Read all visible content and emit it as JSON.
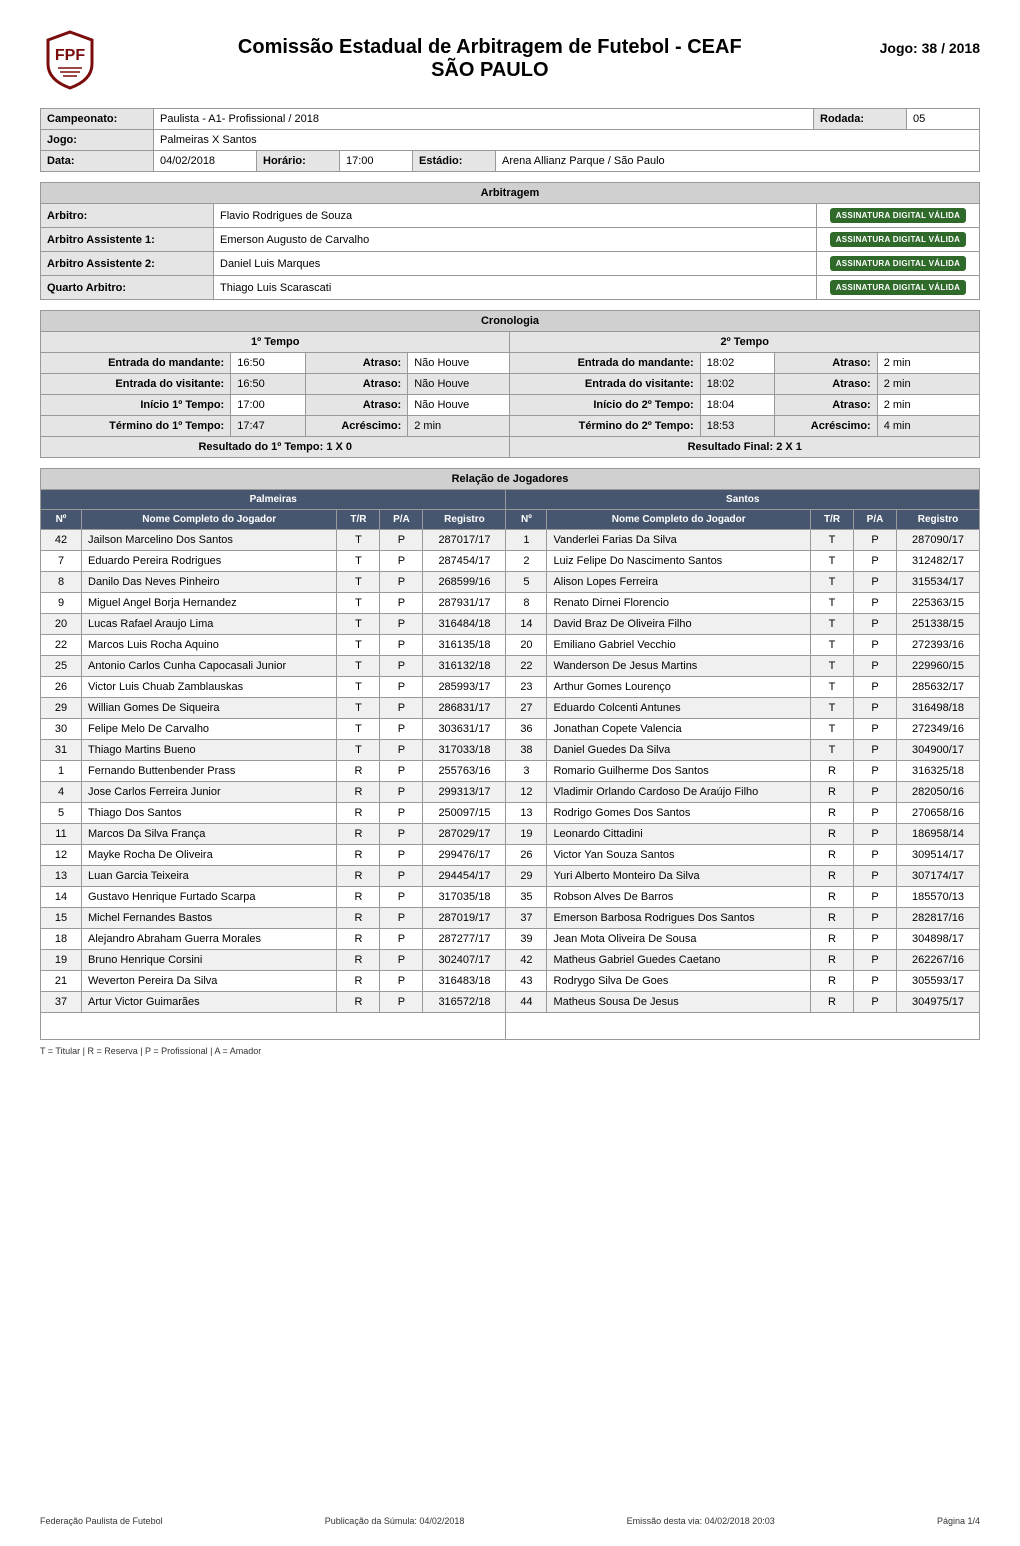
{
  "colors": {
    "page_bg": "#ffffff",
    "darkblue": "#46566f",
    "gray_header": "#d0d0d0",
    "gray_label": "#e5e5e5",
    "stripe": "#f0f0f0",
    "border": "#999999",
    "sig_badge": "#2f6a2a",
    "text": "#000000"
  },
  "logo_colors": {
    "border": "#7a0c0c",
    "letters": "#7a0c0c",
    "fill": "#ffffff"
  },
  "header": {
    "title_line1": "Comissão Estadual de Arbitragem de Futebol - CEAF",
    "title_line2": "SÃO PAULO",
    "jogo_label": "Jogo: 38 / 2018"
  },
  "camp": {
    "campeonato_label": "Campeonato:",
    "campeonato_value": "Paulista - A1- Profissional / 2018",
    "rodada_label": "Rodada:",
    "rodada_value": "05",
    "jogo_label": "Jogo:",
    "jogo_value": "Palmeiras X Santos",
    "data_label": "Data:",
    "data_value": "04/02/2018",
    "horario_label": "Horário:",
    "horario_value": "17:00",
    "estadio_label": "Estádio:",
    "estadio_value": "Arena Allianz Parque / São Paulo"
  },
  "arbitragem": {
    "header": "Arbitragem",
    "sig_text": "ASSINATURA DIGITAL VÁLIDA",
    "rows": [
      {
        "label": "Arbitro:",
        "value": "Flavio Rodrigues de Souza"
      },
      {
        "label": "Arbitro Assistente 1:",
        "value": "Emerson Augusto de Carvalho"
      },
      {
        "label": "Arbitro Assistente 2:",
        "value": "Daniel Luis Marques"
      },
      {
        "label": "Quarto Arbitro:",
        "value": "Thiago Luis Scarascati"
      }
    ]
  },
  "cronologia": {
    "header": "Cronologia",
    "tempo1": "1º Tempo",
    "tempo2": "2º Tempo",
    "labels": {
      "entrada_mand": "Entrada do mandante:",
      "entrada_vis": "Entrada do visitante:",
      "inicio": "Início 1º Tempo:",
      "inicio2": "Início do 2º Tempo:",
      "termino": "Término do 1º Tempo:",
      "termino2": "Término do 2º Tempo:",
      "atraso": "Atraso:",
      "acrescimo": "Acréscimo:",
      "resultado1": "Resultado do 1º Tempo: 1 X 0",
      "resultado_final": "Resultado Final: 2 X 1"
    },
    "t1": {
      "entrada_mand": "16:50",
      "atraso_mand": "Não Houve",
      "entrada_vis": "16:50",
      "atraso_vis": "Não Houve",
      "inicio": "17:00",
      "atraso_inicio": "Não Houve",
      "termino": "17:47",
      "acrescimo": "2 min"
    },
    "t2": {
      "entrada_mand": "18:02",
      "atraso_mand": "2 min",
      "entrada_vis": "18:02",
      "atraso_vis": "2 min",
      "inicio": "18:04",
      "atraso_inicio": "2 min",
      "termino": "18:53",
      "acrescimo": "4 min"
    }
  },
  "jogadores": {
    "header": "Relação de Jogadores",
    "team_left": "Palmeiras",
    "team_right": "Santos",
    "col_n": "Nº",
    "col_nome": "Nome Completo do Jogador",
    "col_tr": "T/R",
    "col_pa": "P/A",
    "col_reg": "Registro",
    "left": [
      {
        "n": "42",
        "nome": "Jailson Marcelino Dos Santos",
        "tr": "T",
        "pa": "P",
        "reg": "287017/17",
        "stripe": true
      },
      {
        "n": "7",
        "nome": "Eduardo Pereira Rodrigues",
        "tr": "T",
        "pa": "P",
        "reg": "287454/17",
        "stripe": false
      },
      {
        "n": "8",
        "nome": "Danilo Das Neves Pinheiro",
        "tr": "T",
        "pa": "P",
        "reg": "268599/16",
        "stripe": true
      },
      {
        "n": "9",
        "nome": "Miguel Angel Borja Hernandez",
        "tr": "T",
        "pa": "P",
        "reg": "287931/17",
        "stripe": false
      },
      {
        "n": "20",
        "nome": "Lucas Rafael Araujo Lima",
        "tr": "T",
        "pa": "P",
        "reg": "316484/18",
        "stripe": true
      },
      {
        "n": "22",
        "nome": "Marcos Luis Rocha Aquino",
        "tr": "T",
        "pa": "P",
        "reg": "316135/18",
        "stripe": false
      },
      {
        "n": "25",
        "nome": "Antonio Carlos Cunha Capocasali Junior",
        "tr": "T",
        "pa": "P",
        "reg": "316132/18",
        "stripe": true
      },
      {
        "n": "26",
        "nome": "Victor Luis Chuab Zamblauskas",
        "tr": "T",
        "pa": "P",
        "reg": "285993/17",
        "stripe": false
      },
      {
        "n": "29",
        "nome": "Willian Gomes De Siqueira",
        "tr": "T",
        "pa": "P",
        "reg": "286831/17",
        "stripe": true
      },
      {
        "n": "30",
        "nome": "Felipe Melo De Carvalho",
        "tr": "T",
        "pa": "P",
        "reg": "303631/17",
        "stripe": false
      },
      {
        "n": "31",
        "nome": "Thiago Martins Bueno",
        "tr": "T",
        "pa": "P",
        "reg": "317033/18",
        "stripe": true
      },
      {
        "n": "1",
        "nome": "Fernando Buttenbender Prass",
        "tr": "R",
        "pa": "P",
        "reg": "255763/16",
        "stripe": false
      },
      {
        "n": "4",
        "nome": "Jose Carlos Ferreira Junior",
        "tr": "R",
        "pa": "P",
        "reg": "299313/17",
        "stripe": true
      },
      {
        "n": "5",
        "nome": "Thiago Dos Santos",
        "tr": "R",
        "pa": "P",
        "reg": "250097/15",
        "stripe": false
      },
      {
        "n": "11",
        "nome": "Marcos Da Silva França",
        "tr": "R",
        "pa": "P",
        "reg": "287029/17",
        "stripe": true
      },
      {
        "n": "12",
        "nome": "Mayke Rocha De Oliveira",
        "tr": "R",
        "pa": "P",
        "reg": "299476/17",
        "stripe": false
      },
      {
        "n": "13",
        "nome": "Luan Garcia Teixeira",
        "tr": "R",
        "pa": "P",
        "reg": "294454/17",
        "stripe": true
      },
      {
        "n": "14",
        "nome": "Gustavo Henrique Furtado Scarpa",
        "tr": "R",
        "pa": "P",
        "reg": "317035/18",
        "stripe": false
      },
      {
        "n": "15",
        "nome": "Michel Fernandes Bastos",
        "tr": "R",
        "pa": "P",
        "reg": "287019/17",
        "stripe": true
      },
      {
        "n": "18",
        "nome": "Alejandro Abraham Guerra Morales",
        "tr": "R",
        "pa": "P",
        "reg": "287277/17",
        "stripe": false
      },
      {
        "n": "19",
        "nome": "Bruno Henrique Corsini",
        "tr": "R",
        "pa": "P",
        "reg": "302407/17",
        "stripe": true
      },
      {
        "n": "21",
        "nome": "Weverton Pereira Da Silva",
        "tr": "R",
        "pa": "P",
        "reg": "316483/18",
        "stripe": false
      },
      {
        "n": "37",
        "nome": "Artur Victor Guimarães",
        "tr": "R",
        "pa": "P",
        "reg": "316572/18",
        "stripe": true
      }
    ],
    "right": [
      {
        "n": "1",
        "nome": "Vanderlei Farias Da Silva",
        "tr": "T",
        "pa": "P",
        "reg": "287090/17",
        "stripe": true
      },
      {
        "n": "2",
        "nome": "Luiz Felipe Do Nascimento Santos",
        "tr": "T",
        "pa": "P",
        "reg": "312482/17",
        "stripe": false
      },
      {
        "n": "5",
        "nome": "Alison Lopes Ferreira",
        "tr": "T",
        "pa": "P",
        "reg": "315534/17",
        "stripe": true
      },
      {
        "n": "8",
        "nome": "Renato Dirnei Florencio",
        "tr": "T",
        "pa": "P",
        "reg": "225363/15",
        "stripe": false
      },
      {
        "n": "14",
        "nome": "David Braz De Oliveira Filho",
        "tr": "T",
        "pa": "P",
        "reg": "251338/15",
        "stripe": true
      },
      {
        "n": "20",
        "nome": "Emiliano Gabriel Vecchio",
        "tr": "T",
        "pa": "P",
        "reg": "272393/16",
        "stripe": false
      },
      {
        "n": "22",
        "nome": "Wanderson De Jesus Martins",
        "tr": "T",
        "pa": "P",
        "reg": "229960/15",
        "stripe": true
      },
      {
        "n": "23",
        "nome": "Arthur Gomes Lourenço",
        "tr": "T",
        "pa": "P",
        "reg": "285632/17",
        "stripe": false
      },
      {
        "n": "27",
        "nome": "Eduardo Colcenti Antunes",
        "tr": "T",
        "pa": "P",
        "reg": "316498/18",
        "stripe": true
      },
      {
        "n": "36",
        "nome": "Jonathan Copete Valencia",
        "tr": "T",
        "pa": "P",
        "reg": "272349/16",
        "stripe": false
      },
      {
        "n": "38",
        "nome": "Daniel Guedes Da Silva",
        "tr": "T",
        "pa": "P",
        "reg": "304900/17",
        "stripe": true
      },
      {
        "n": "3",
        "nome": "Romario Guilherme Dos Santos",
        "tr": "R",
        "pa": "P",
        "reg": "316325/18",
        "stripe": false
      },
      {
        "n": "12",
        "nome": "Vladimir Orlando Cardoso De Araújo Filho",
        "tr": "R",
        "pa": "P",
        "reg": "282050/16",
        "stripe": true
      },
      {
        "n": "13",
        "nome": "Rodrigo Gomes Dos Santos",
        "tr": "R",
        "pa": "P",
        "reg": "270658/16",
        "stripe": false
      },
      {
        "n": "19",
        "nome": "Leonardo Cittadini",
        "tr": "R",
        "pa": "P",
        "reg": "186958/14",
        "stripe": true
      },
      {
        "n": "26",
        "nome": "Victor Yan Souza Santos",
        "tr": "R",
        "pa": "P",
        "reg": "309514/17",
        "stripe": false
      },
      {
        "n": "29",
        "nome": "Yuri Alberto Monteiro Da Silva",
        "tr": "R",
        "pa": "P",
        "reg": "307174/17",
        "stripe": true
      },
      {
        "n": "35",
        "nome": "Robson Alves De Barros",
        "tr": "R",
        "pa": "P",
        "reg": "185570/13",
        "stripe": false
      },
      {
        "n": "37",
        "nome": "Emerson Barbosa Rodrigues Dos Santos",
        "tr": "R",
        "pa": "P",
        "reg": "282817/16",
        "stripe": true
      },
      {
        "n": "39",
        "nome": "Jean Mota Oliveira De Sousa",
        "tr": "R",
        "pa": "P",
        "reg": "304898/17",
        "stripe": false
      },
      {
        "n": "42",
        "nome": "Matheus Gabriel Guedes Caetano",
        "tr": "R",
        "pa": "P",
        "reg": "262267/16",
        "stripe": true
      },
      {
        "n": "43",
        "nome": "Rodrygo Silva De Goes",
        "tr": "R",
        "pa": "P",
        "reg": "305593/17",
        "stripe": false
      },
      {
        "n": "44",
        "nome": "Matheus Sousa De Jesus",
        "tr": "R",
        "pa": "P",
        "reg": "304975/17",
        "stripe": true
      }
    ]
  },
  "legend": "T = Titular | R = Reserva | P = Profissional | A = Amador",
  "footer": {
    "left": "Federação Paulista de Futebol",
    "center": "Publicação da Súmula: 04/02/2018",
    "center2": "Emissão desta via: 04/02/2018 20:03",
    "right": "Página 1/4"
  }
}
